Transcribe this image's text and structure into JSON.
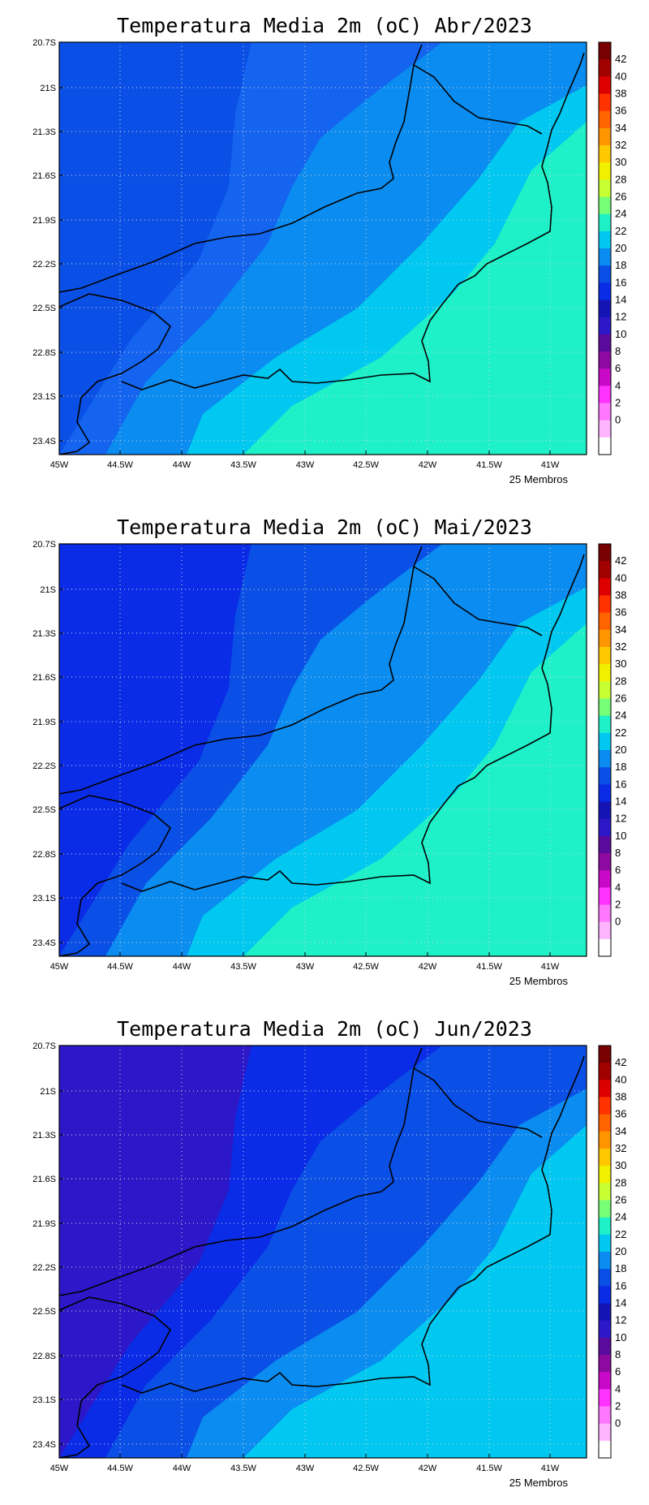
{
  "panels": [
    {
      "title": "Temperatura Media 2m (oC) Abr/2023",
      "footer": "25 Membros",
      "fields": [
        [
          "#0a50e6",
          "#1464f0",
          "#0a8cf0",
          "#00c8f0",
          "#1ef0c8"
        ]
      ]
    },
    {
      "title": "Temperatura Media 2m (oC) Mai/2023",
      "footer": "25 Membros",
      "fields": [
        [
          "#0a2ce6",
          "#0a50e6",
          "#0a8cf0",
          "#00c8f0",
          "#1ef0c8"
        ]
      ]
    },
    {
      "title": "Temperatura Media 2m (oC) Jun/2023",
      "footer": "25 Membros",
      "fields": [
        [
          "#2c18c8",
          "#0a2ce6",
          "#0a50e6",
          "#0a8cf0",
          "#00c8f0"
        ]
      ]
    }
  ],
  "lat_labels": [
    "20.7S",
    "21S",
    "21.3S",
    "21.6S",
    "21.9S",
    "22.2S",
    "22.5S",
    "22.8S",
    "23.1S",
    "23.4S"
  ],
  "lon_labels": [
    "45W",
    "44.5W",
    "44W",
    "43.5W",
    "43W",
    "42.5W",
    "42W",
    "41.5W",
    "41W"
  ],
  "colorbar": {
    "labels": [
      "42",
      "40",
      "38",
      "36",
      "34",
      "32",
      "30",
      "28",
      "26",
      "24",
      "22",
      "20",
      "18",
      "16",
      "14",
      "12",
      "10",
      "8",
      "6",
      "4",
      "2",
      "0"
    ],
    "colors": [
      "#780000",
      "#a00000",
      "#dc0000",
      "#ff3200",
      "#ff6400",
      "#ff9600",
      "#ffc800",
      "#f0f000",
      "#c8ff32",
      "#78ff78",
      "#1ef0c8",
      "#00c8f0",
      "#0a8cf0",
      "#0a50e6",
      "#0a2ce6",
      "#1414b4",
      "#2c18c8",
      "#5a0a9c",
      "#8c0aa0",
      "#c80ac8",
      "#ff32ff",
      "#ff78ff",
      "#ffb4ff",
      "#ffffff"
    ]
  }
}
